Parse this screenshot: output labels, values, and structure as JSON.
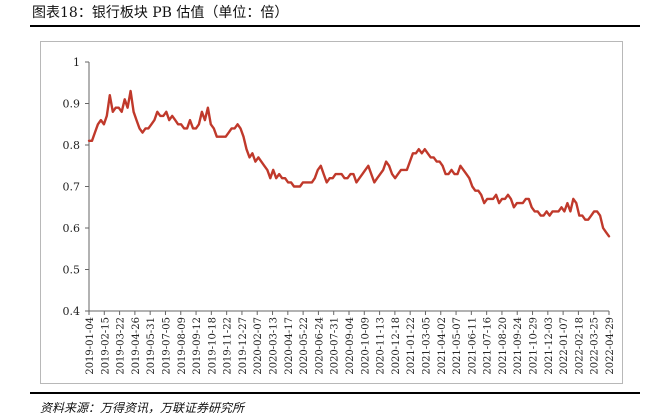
{
  "figure": {
    "title": "图表18：银行板块 PB 估值（单位：倍）",
    "source": "资料来源：万得资讯，万联证券研究所"
  },
  "colors": {
    "line": "#c0392b",
    "axis": "#666666",
    "text": "#222222"
  },
  "chart_data": {
    "type": "line",
    "title": "",
    "xlabel": "",
    "ylabel": "",
    "ylim": [
      0.4,
      1.0
    ],
    "yticks": [
      0.4,
      0.5,
      0.6,
      0.7,
      0.8,
      0.9,
      1.0
    ],
    "ytick_labels": [
      "0.4",
      "0.5",
      "0.6",
      "0.7",
      "0.8",
      "0.9",
      "1"
    ],
    "grid": false,
    "legend": "none",
    "x_tick_labels": [
      "2019-01-04",
      "2019-02-15",
      "2019-03-22",
      "2019-04-26",
      "2019-05-31",
      "2019-07-05",
      "2019-08-09",
      "2019-09-12",
      "2019-10-18",
      "2019-11-22",
      "2019-12-27",
      "2020-02-07",
      "2020-03-13",
      "2020-04-17",
      "2020-05-22",
      "2020-06-24",
      "2020-07-31",
      "2020-09-04",
      "2020-10-09",
      "2020-11-13",
      "2020-12-18",
      "2021-01-22",
      "2021-03-05",
      "2021-04-02",
      "2021-05-07",
      "2021-06-11",
      "2021-07-16",
      "2021-08-20",
      "2021-09-24",
      "2021-10-29",
      "2021-12-03",
      "2022-01-07",
      "2022-02-18",
      "2022-03-25",
      "2022-04-29"
    ],
    "series": [
      {
        "name": "",
        "values": [
          0.81,
          0.81,
          0.83,
          0.85,
          0.86,
          0.85,
          0.87,
          0.92,
          0.88,
          0.89,
          0.89,
          0.88,
          0.91,
          0.89,
          0.93,
          0.88,
          0.86,
          0.84,
          0.83,
          0.84,
          0.84,
          0.85,
          0.86,
          0.88,
          0.87,
          0.87,
          0.88,
          0.86,
          0.87,
          0.86,
          0.85,
          0.85,
          0.84,
          0.84,
          0.86,
          0.84,
          0.84,
          0.85,
          0.88,
          0.86,
          0.89,
          0.85,
          0.84,
          0.82,
          0.82,
          0.82,
          0.82,
          0.83,
          0.84,
          0.84,
          0.85,
          0.84,
          0.82,
          0.79,
          0.77,
          0.78,
          0.76,
          0.77,
          0.76,
          0.75,
          0.74,
          0.72,
          0.74,
          0.72,
          0.73,
          0.72,
          0.72,
          0.71,
          0.71,
          0.7,
          0.7,
          0.7,
          0.71,
          0.71,
          0.71,
          0.71,
          0.72,
          0.74,
          0.75,
          0.73,
          0.71,
          0.72,
          0.72,
          0.73,
          0.73,
          0.73,
          0.72,
          0.72,
          0.73,
          0.73,
          0.71,
          0.72,
          0.73,
          0.74,
          0.75,
          0.73,
          0.71,
          0.72,
          0.73,
          0.74,
          0.76,
          0.75,
          0.73,
          0.72,
          0.73,
          0.74,
          0.74,
          0.74,
          0.76,
          0.78,
          0.78,
          0.79,
          0.78,
          0.79,
          0.78,
          0.77,
          0.77,
          0.76,
          0.76,
          0.75,
          0.73,
          0.73,
          0.74,
          0.73,
          0.73,
          0.75,
          0.74,
          0.73,
          0.72,
          0.7,
          0.69,
          0.69,
          0.68,
          0.66,
          0.67,
          0.67,
          0.67,
          0.68,
          0.66,
          0.67,
          0.67,
          0.68,
          0.67,
          0.65,
          0.66,
          0.66,
          0.66,
          0.67,
          0.67,
          0.65,
          0.64,
          0.64,
          0.63,
          0.63,
          0.64,
          0.63,
          0.64,
          0.64,
          0.64,
          0.65,
          0.64,
          0.66,
          0.64,
          0.67,
          0.66,
          0.63,
          0.63,
          0.62,
          0.62,
          0.63,
          0.64,
          0.64,
          0.63,
          0.6,
          0.59,
          0.58
        ]
      }
    ]
  }
}
